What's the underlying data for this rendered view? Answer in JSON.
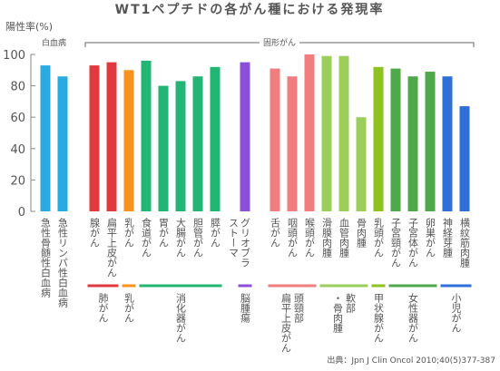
{
  "chart_data": {
    "type": "bar",
    "title": "WT1ペプチドの各がん種における発現率",
    "y_label": "陽性率(%)",
    "source": "出典：Jpn J Clin Oncol 2010;40(5)377-387",
    "ylim": [
      0,
      100
    ],
    "yticks": [
      0,
      20,
      40,
      60,
      80,
      100
    ],
    "categories": [
      [
        "急性骨髄性白血病"
      ],
      [
        "急性リンパ性白血病"
      ],
      [
        "腺がん"
      ],
      [
        "扁平上皮がん"
      ],
      [
        "乳がん"
      ],
      [
        "食道がん"
      ],
      [
        "胃がん"
      ],
      [
        "大腸がん"
      ],
      [
        "胆管がん"
      ],
      [
        "膵がん"
      ],
      [
        "グリオブラ",
        "ストーマ"
      ],
      [
        "舌がん"
      ],
      [
        "咽頭がん"
      ],
      [
        "喉頭がん"
      ],
      [
        "滑膜肉腫"
      ],
      [
        "血管肉腫"
      ],
      [
        "骨肉腫"
      ],
      [
        "乳頭がん"
      ],
      [
        "子宮頸がん"
      ],
      [
        "子宮体がん"
      ],
      [
        "卵巣がん"
      ],
      [
        "神経芽腫"
      ],
      [
        "横紋筋肉腫"
      ]
    ],
    "values": [
      93,
      86,
      93,
      95,
      90,
      96,
      80,
      83,
      86,
      92,
      95,
      91,
      86,
      100,
      99,
      99,
      60,
      92,
      91,
      86,
      89,
      86,
      67
    ],
    "colors": [
      "#29abe2",
      "#29abe2",
      "#e03a3e",
      "#e03a3e",
      "#f7931e",
      "#22b573",
      "#22b573",
      "#22b573",
      "#22b573",
      "#22b573",
      "#8b4fd8",
      "#f07e7e",
      "#f07e7e",
      "#f07e7e",
      "#9ccf5a",
      "#9ccf5a",
      "#9ccf5a",
      "#8dc21f",
      "#4fa84a",
      "#4fa84a",
      "#4fa84a",
      "#2f6fd6",
      "#2f6fd6"
    ],
    "groups": [
      {
        "label": "白血病",
        "bars": [
          0,
          1
        ]
      },
      {
        "label": "固形がん",
        "bars": [
          2,
          22
        ]
      }
    ],
    "subgroups": [
      {
        "label": [
          "肺がん"
        ],
        "bars": [
          2,
          3
        ],
        "color": "#e03a3e"
      },
      {
        "label": [
          "乳がん"
        ],
        "bars": [
          4,
          4
        ],
        "color": "#f7931e"
      },
      {
        "label": [
          "消化器がん"
        ],
        "bars": [
          5,
          9
        ],
        "color": "#22b573"
      },
      {
        "label": [
          "脳腫瘍"
        ],
        "bars": [
          10,
          10
        ],
        "color": "#8b4fd8"
      },
      {
        "label": [
          "頭頸部",
          "扁平上皮がん"
        ],
        "bars": [
          11,
          13
        ],
        "color": "#f07e7e"
      },
      {
        "label": [
          "軟部",
          "・骨肉腫"
        ],
        "bars": [
          14,
          16
        ],
        "color": "#9ccf5a"
      },
      {
        "label": [
          "甲状腺がん"
        ],
        "bars": [
          17,
          17
        ],
        "color": "#8dc21f"
      },
      {
        "label": [
          "女性器がん"
        ],
        "bars": [
          18,
          20
        ],
        "color": "#4fa84a"
      },
      {
        "label": [
          "小児がん"
        ],
        "bars": [
          21,
          22
        ],
        "color": "#2f6fd6"
      }
    ]
  }
}
